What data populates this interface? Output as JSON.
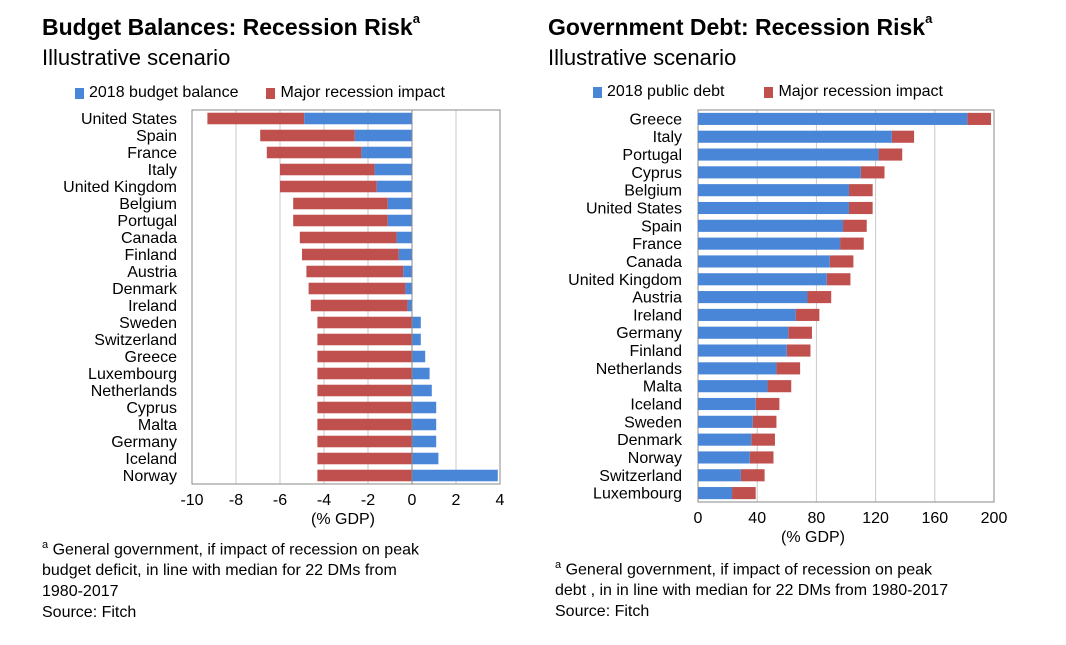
{
  "left": {
    "title": "Budget Balances: Recession Risk",
    "title_sup": "a",
    "subtitle": "Illustrative scenario",
    "legend": [
      "2018 budget balance",
      "Major recession impact"
    ],
    "footnote_marker": "a",
    "footnote_lines": [
      "General government, if impact of recession on peak",
      "budget deficit, in line with median for 22 DMs from",
      "1980-2017",
      "Source: Fitch"
    ]
  },
  "right": {
    "title": "Government Debt: Recession Risk",
    "title_sup": "a",
    "subtitle": "Illustrative scenario",
    "legend": [
      "2018 public debt",
      "Major recession impact"
    ],
    "footnote_marker": "a",
    "footnote_lines": [
      "General government, if impact of recession on peak",
      "debt , in in line with median for 22 DMs from 1980-2017",
      "Source: Fitch"
    ]
  },
  "colors": {
    "blue": "#4a86d8",
    "red": "#c0504d",
    "grid": "#c8c8c8",
    "axis": "#888888"
  },
  "chart_data": [
    {
      "type": "bar",
      "orientation": "horizontal",
      "stacked": true,
      "title": "Budget Balances: Recession Risk",
      "subtitle": "Illustrative scenario",
      "xlabel": "(% GDP)",
      "xlim": [
        -10,
        4
      ],
      "xticks": [
        -10,
        -8,
        -6,
        -4,
        -2,
        0,
        2,
        4
      ],
      "grid": "vertical",
      "legend_position": "top",
      "categories": [
        "United States",
        "Spain",
        "France",
        "Italy",
        "United Kingdom",
        "Belgium",
        "Portugal",
        "Canada",
        "Finland",
        "Austria",
        "Denmark",
        "Ireland",
        "Sweden",
        "Switzerland",
        "Greece",
        "Luxembourg",
        "Netherlands",
        "Cyprus",
        "Malta",
        "Germany",
        "Iceland",
        "Norway"
      ],
      "series": [
        {
          "name": "2018 budget balance",
          "values": [
            -4.9,
            -2.6,
            -2.3,
            -1.7,
            -1.6,
            -1.1,
            -1.1,
            -0.7,
            -0.6,
            -0.4,
            -0.3,
            -0.2,
            0.4,
            0.4,
            0.6,
            0.8,
            0.9,
            1.1,
            1.1,
            1.1,
            1.2,
            3.9
          ]
        },
        {
          "name": "Major recession impact",
          "values": [
            -4.4,
            -4.3,
            -4.3,
            -4.3,
            -4.4,
            -4.3,
            -4.3,
            -4.4,
            -4.4,
            -4.4,
            -4.4,
            -4.4,
            -4.3,
            -4.3,
            -4.3,
            -4.3,
            -4.3,
            -4.3,
            -4.3,
            -4.3,
            -4.3,
            -4.3
          ]
        }
      ]
    },
    {
      "type": "bar",
      "orientation": "horizontal",
      "stacked": true,
      "title": "Government Debt: Recession Risk",
      "subtitle": "Illustrative scenario",
      "xlabel": "(% GDP)",
      "xlim": [
        0,
        200
      ],
      "xticks": [
        0,
        40,
        80,
        120,
        160,
        200
      ],
      "grid": "vertical",
      "legend_position": "top",
      "categories": [
        "Greece",
        "Italy",
        "Portugal",
        "Cyprus",
        "Belgium",
        "United States",
        "Spain",
        "France",
        "Canada",
        "United Kingdom",
        "Austria",
        "Ireland",
        "Germany",
        "Finland",
        "Netherlands",
        "Malta",
        "Iceland",
        "Sweden",
        "Denmark",
        "Norway",
        "Switzerland",
        "Luxembourg"
      ],
      "series": [
        {
          "name": "2018 public debt",
          "values": [
            182,
            131,
            122,
            110,
            102,
            102,
            98,
            96,
            89,
            87,
            74,
            66,
            61,
            60,
            53,
            47,
            39,
            37,
            36,
            35,
            29,
            23
          ]
        },
        {
          "name": "Major recession impact",
          "values": [
            16,
            15,
            16,
            16,
            16,
            16,
            16,
            16,
            16,
            16,
            16,
            16,
            16,
            16,
            16,
            16,
            16,
            16,
            16,
            16,
            16,
            16
          ]
        }
      ]
    }
  ]
}
